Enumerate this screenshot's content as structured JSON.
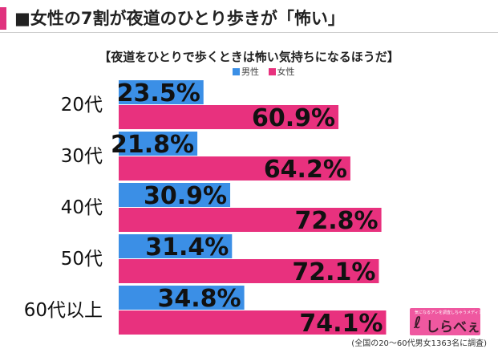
{
  "headline": "■女性の7割が夜道のひとり歩きが「怖い」",
  "colors": {
    "male": "#3b8fe6",
    "female": "#e8317e",
    "accent": "#e0327e"
  },
  "logo": {
    "mark": "ℓ",
    "name": "しらべぇ",
    "tagline": "気になるアレを調査しちゃうメディア"
  },
  "footnote": "(全国の20～60代男女1363名に調査)",
  "chart_data": {
    "type": "bar",
    "orientation": "horizontal",
    "title": "【夜道をひとりで歩くときは怖い気持ちになるほうだ】",
    "categories": [
      "20代",
      "30代",
      "40代",
      "50代",
      "60代以上"
    ],
    "series": [
      {
        "name": "男性",
        "values": [
          23.5,
          21.8,
          30.9,
          31.4,
          34.8
        ],
        "labels": [
          "23.5%",
          "21.8%",
          "30.9%",
          "31.4%",
          "34.8%"
        ]
      },
      {
        "name": "女性",
        "values": [
          60.9,
          64.2,
          72.8,
          72.1,
          74.1
        ],
        "labels": [
          "60.9%",
          "64.2%",
          "72.8%",
          "72.1%",
          "74.1%"
        ]
      }
    ],
    "value_unit": "%",
    "xlim": [
      0,
      100
    ],
    "legend_position": "top",
    "grid": false
  }
}
